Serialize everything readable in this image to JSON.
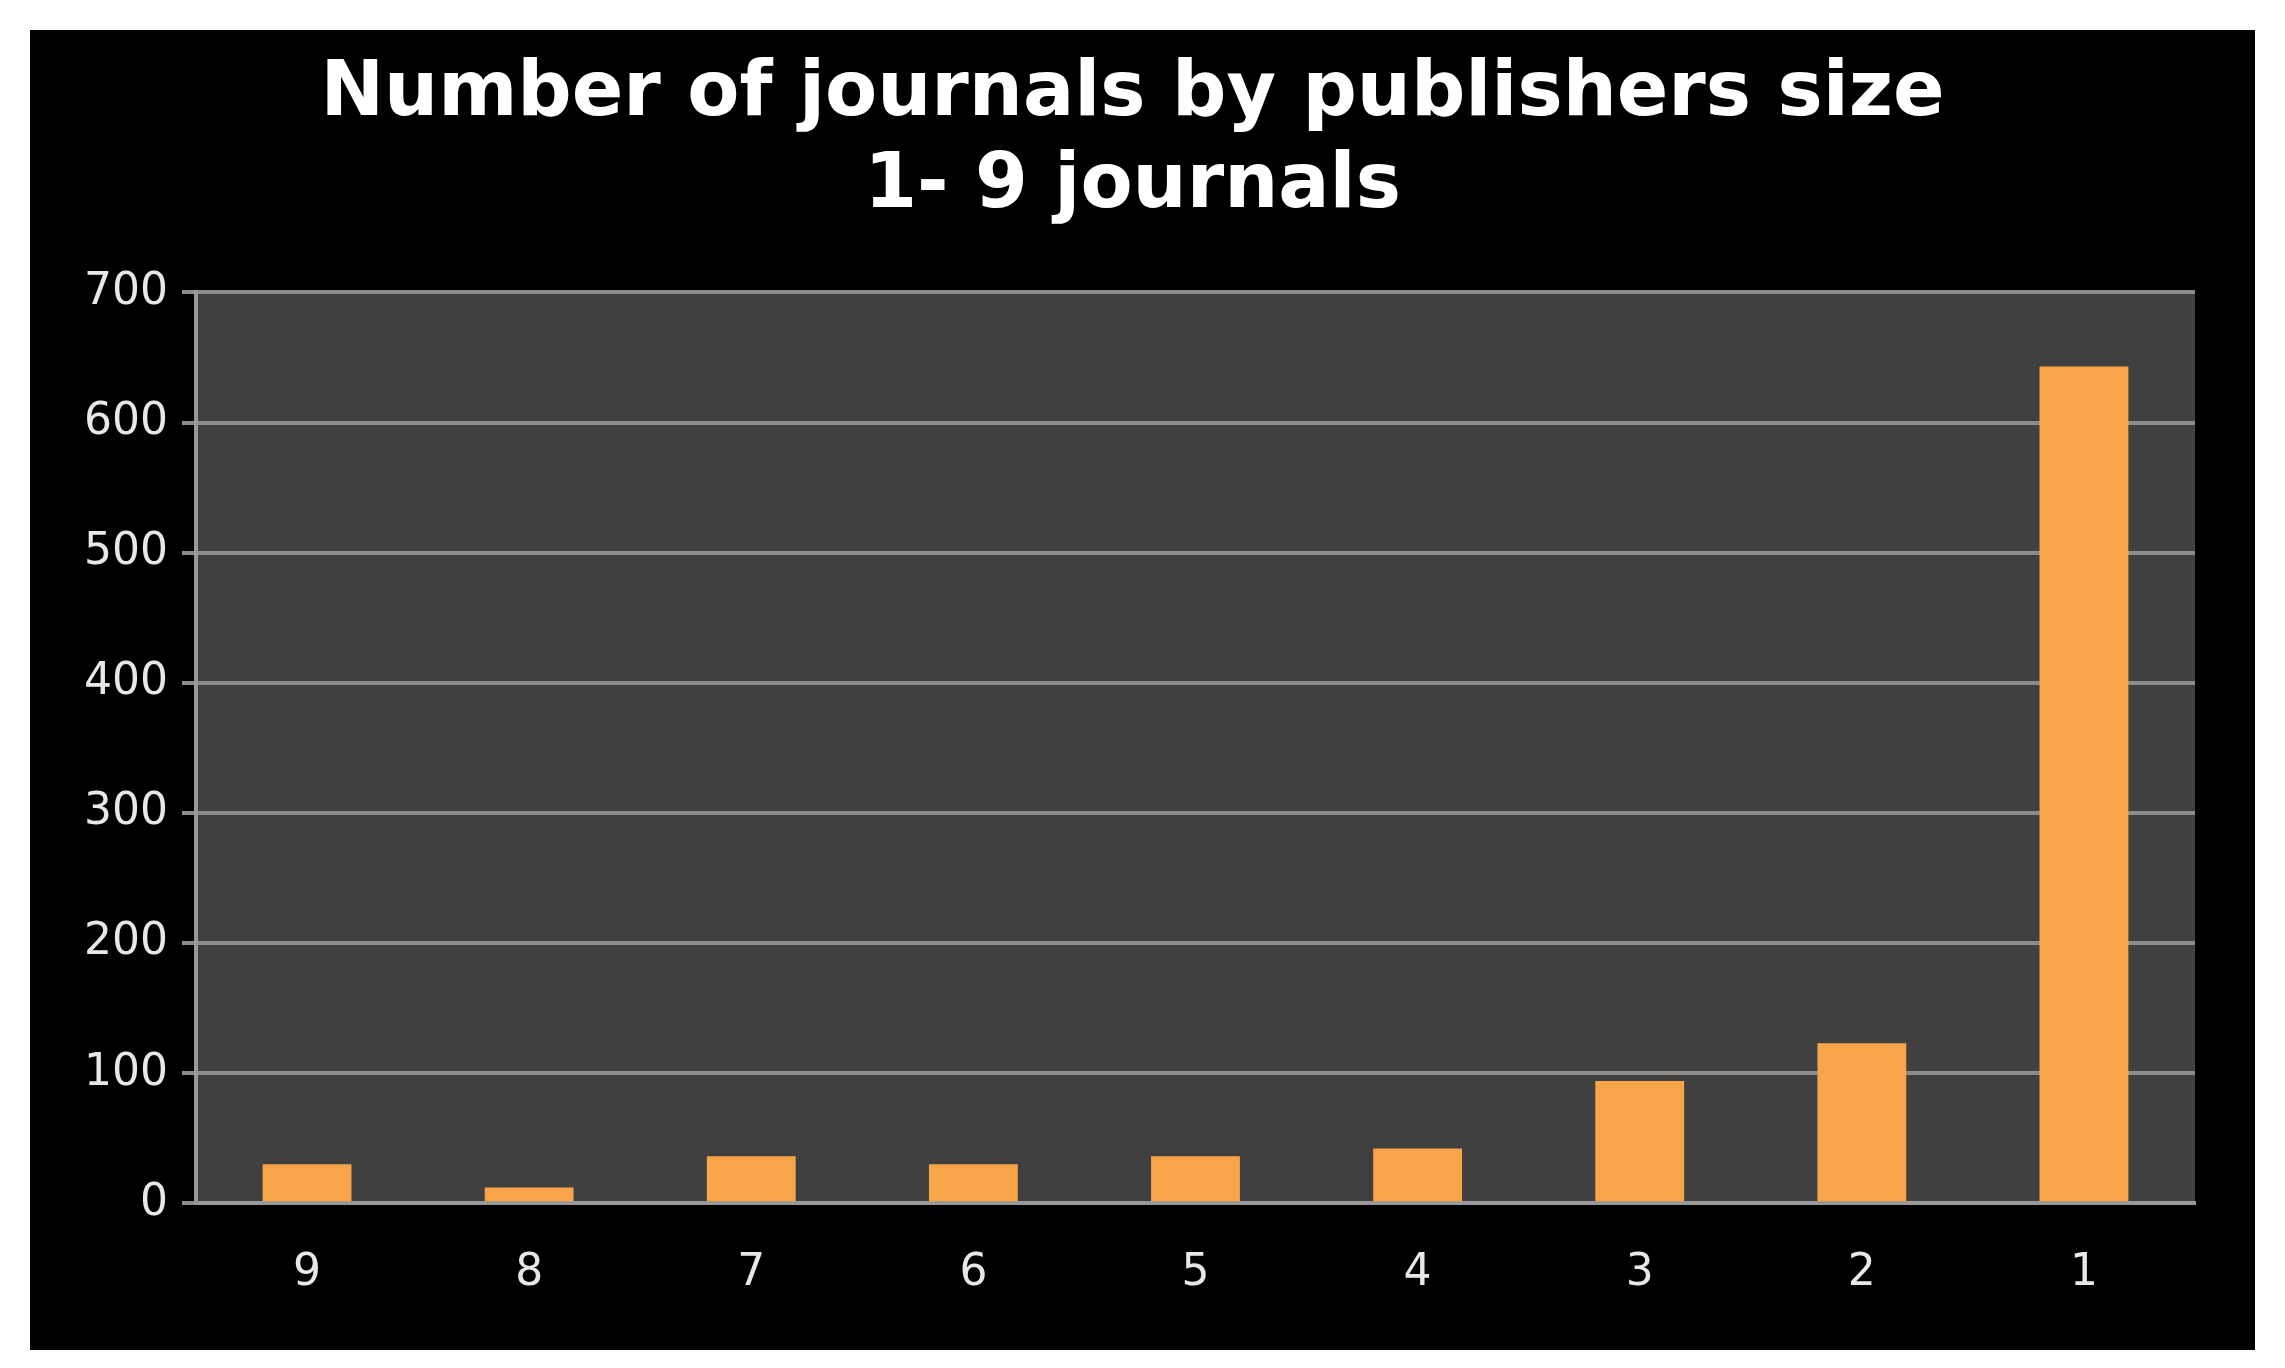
{
  "chart_data": {
    "type": "bar",
    "title": [
      "Number of journals by publishers size",
      "1- 9 journals"
    ],
    "categories": [
      "9",
      "8",
      "7",
      "6",
      "5",
      "4",
      "3",
      "2",
      "1"
    ],
    "values": [
      30,
      12,
      36,
      30,
      36,
      42,
      94,
      123,
      643
    ],
    "color": "#f7a548",
    "ylim": [
      0,
      700
    ],
    "yticks": [
      0,
      100,
      200,
      300,
      400,
      500,
      600,
      700
    ],
    "grid": "y",
    "legend": false
  }
}
